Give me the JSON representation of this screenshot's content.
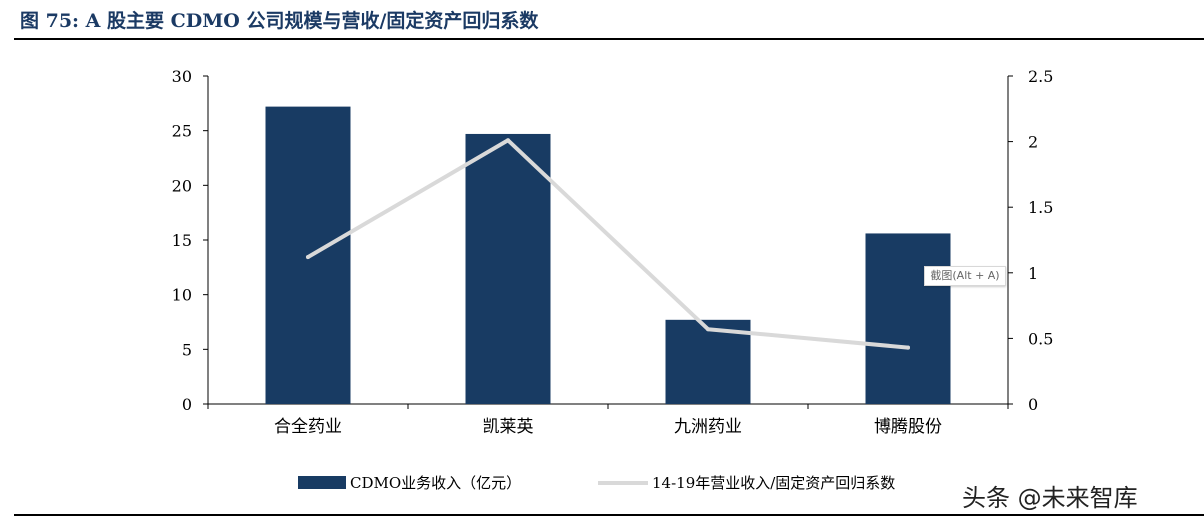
{
  "header": {
    "title": "图 75:  A 股主要 CDMO 公司规模与营收/固定资产回归系数"
  },
  "tooltip": "截图(Alt + A)",
  "watermark": "头条 @未来智库",
  "colors": {
    "bar": "#183b63",
    "line": "#d9d9d9",
    "title": "#1b3a64"
  },
  "chart_data": {
    "type": "bar",
    "categories": [
      "合全药业",
      "凯莱英",
      "九洲药业",
      "博腾股份"
    ],
    "series": [
      {
        "name": "CDMO业务收入（亿元）",
        "type": "bar",
        "axis": "left",
        "values": [
          27.2,
          24.7,
          7.7,
          15.6
        ]
      },
      {
        "name": "14-19年营业收入/固定资产回归系数",
        "type": "line",
        "axis": "right",
        "values": [
          1.12,
          2.01,
          0.57,
          0.43
        ]
      }
    ],
    "y_left": {
      "min": 0,
      "max": 30,
      "ticks": [
        "0",
        "5",
        "10",
        "15",
        "20",
        "25",
        "30"
      ]
    },
    "y_right": {
      "min": 0,
      "max": 2.5,
      "ticks": [
        "0",
        "0.5",
        "1",
        "1.5",
        "2",
        "2.5"
      ]
    },
    "grid": false,
    "legend_position": "bottom"
  }
}
